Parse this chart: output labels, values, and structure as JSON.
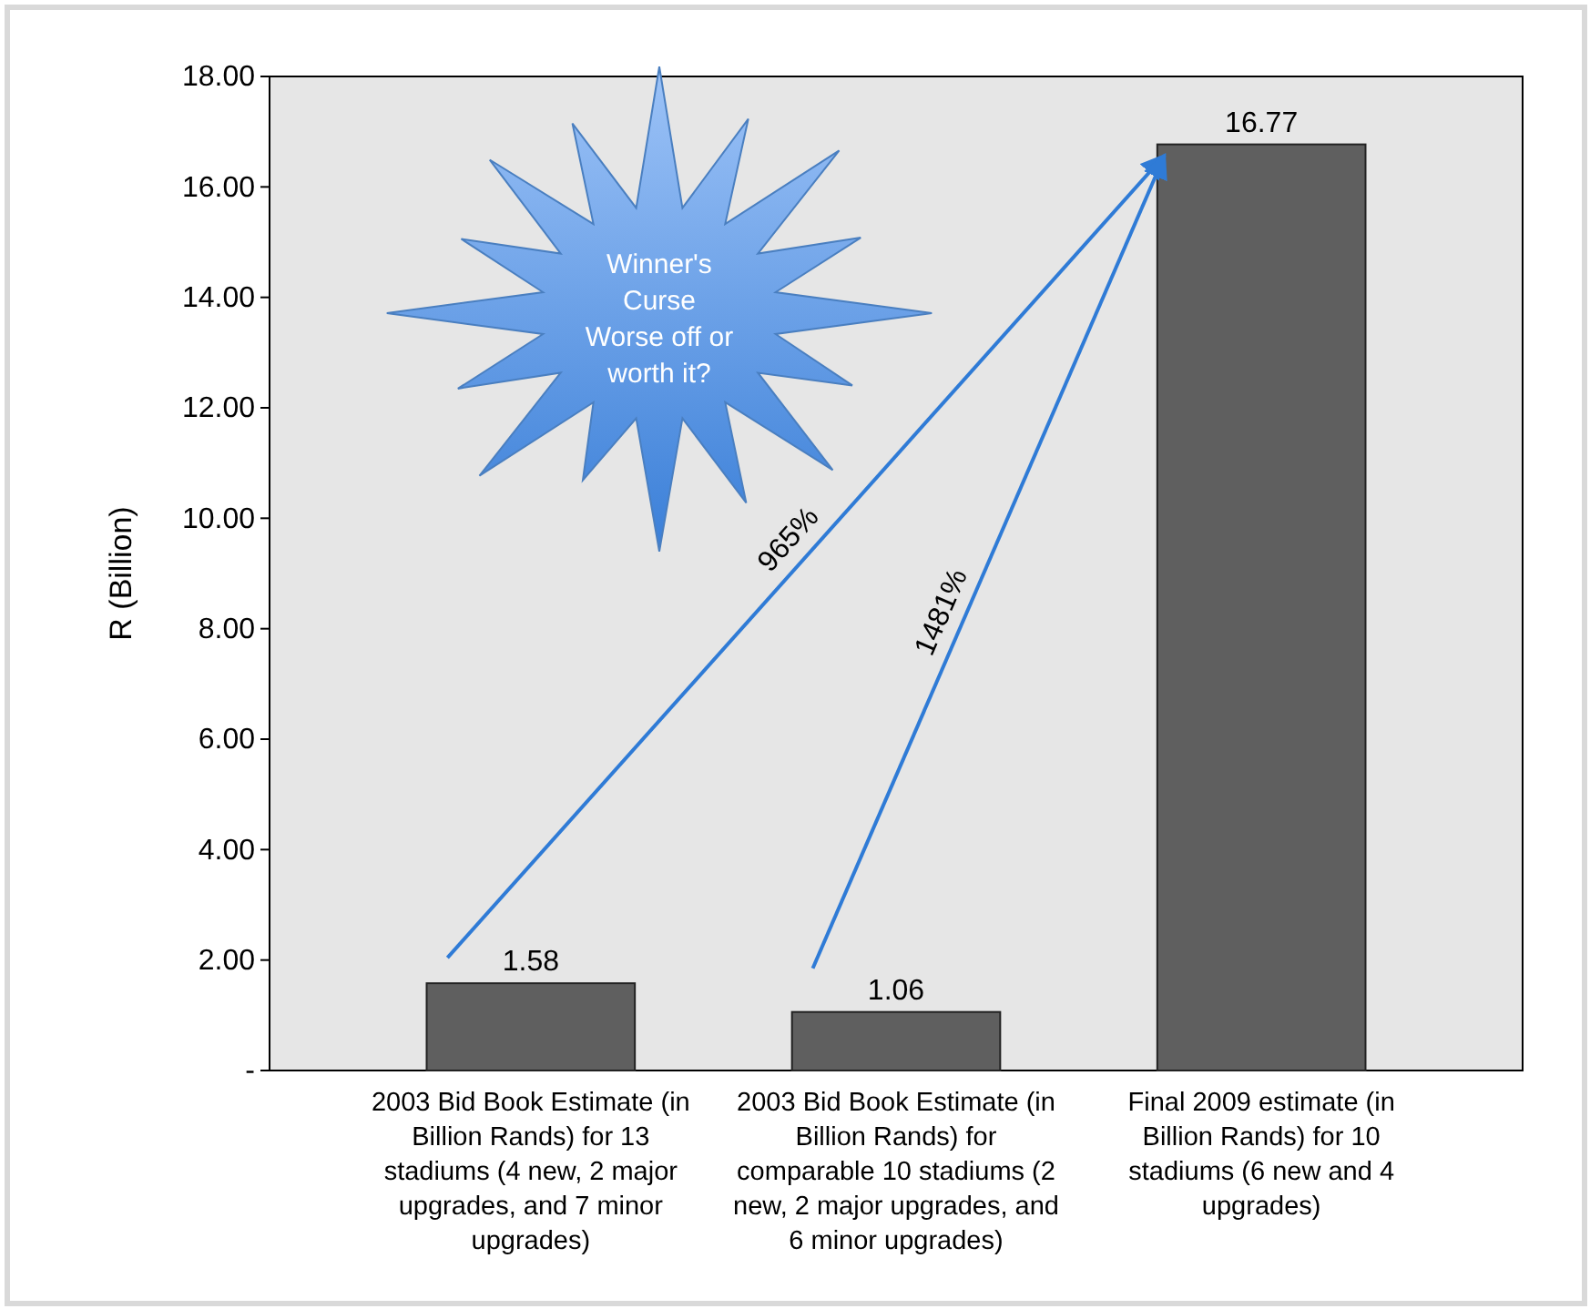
{
  "chart_data": {
    "type": "bar",
    "ylabel": "R (Billion)",
    "categories": [
      "2003 Bid Book Estimate (in Billion Rands) for 13 stadiums (4 new, 2 major upgrades, and 7 minor upgrades)",
      "2003 Bid Book Estimate (in Billion Rands) for comparable 10 stadiums (2 new, 2 major upgrades, and 6 minor upgrades)",
      "Final 2009 estimate (in Billion Rands) for 10 stadiums (6 new and 4 upgrades)"
    ],
    "values": [
      1.58,
      1.06,
      16.77
    ],
    "color": "#5f5f5f",
    "data_labels": true,
    "ylim": [
      0,
      18
    ],
    "yticks": [
      {
        "value": 0,
        "label": "-"
      },
      {
        "value": 2,
        "label": "2.00"
      },
      {
        "value": 4,
        "label": "4.00"
      },
      {
        "value": 6,
        "label": "6.00"
      },
      {
        "value": 8,
        "label": "8.00"
      },
      {
        "value": 10,
        "label": "10.00"
      },
      {
        "value": 12,
        "label": "12.00"
      },
      {
        "value": 14,
        "label": "14.00"
      },
      {
        "value": 16,
        "label": "16.00"
      },
      {
        "value": 18,
        "label": "18.00"
      }
    ],
    "annotations": [
      "Winner's Curse Worse off or worth it?",
      "965%",
      "1481%"
    ],
    "grid": false
  }
}
